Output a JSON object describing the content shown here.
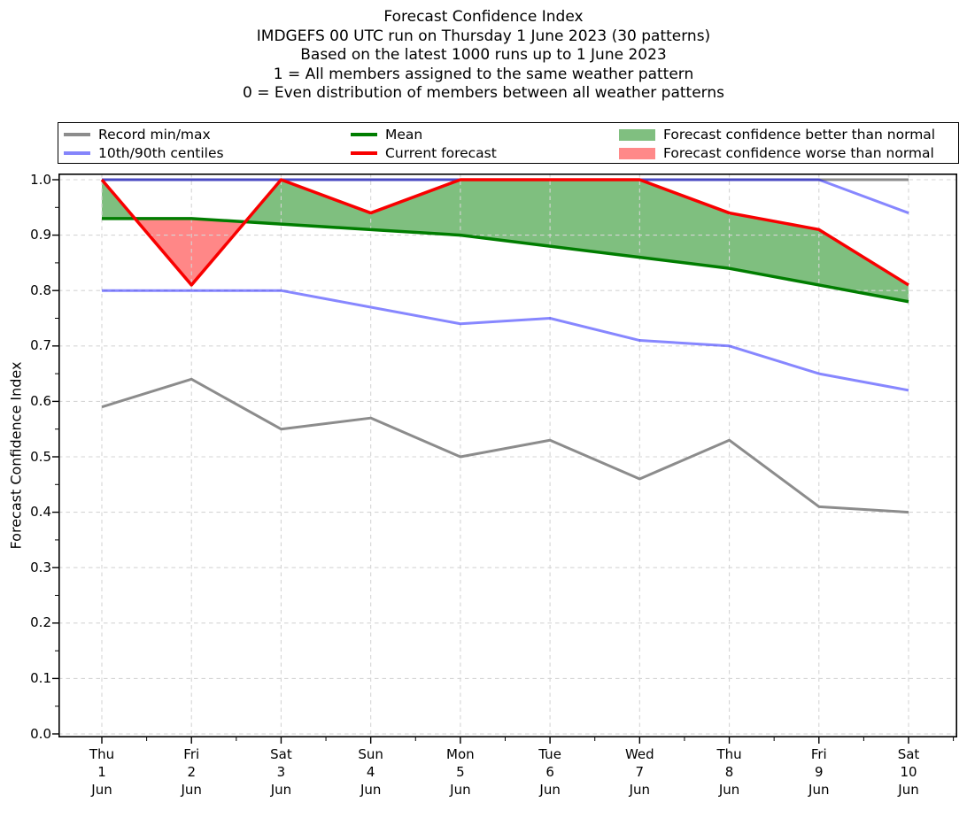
{
  "header": {
    "lines": [
      "Forecast Confidence Index",
      "IMDGEFS 00 UTC run on Thursday 1 June 2023 (30 patterns)",
      "Based on the latest 1000 runs up to 1 June 2023",
      "1 = All members assigned to the same weather pattern",
      "0 = Even distribution of members between all weather patterns"
    ]
  },
  "legend": {
    "items": [
      {
        "label": "Record min/max",
        "swatch": "line",
        "color": "#8c8c8c"
      },
      {
        "label": "10th/90th centiles",
        "swatch": "line",
        "color": "#8585fb"
      },
      {
        "label": "Mean",
        "swatch": "line",
        "color": "#007d00"
      },
      {
        "label": "Current forecast",
        "swatch": "line",
        "color": "#f80000"
      },
      {
        "label": "Forecast confidence better than normal",
        "swatch": "patch",
        "color": "#80bf80"
      },
      {
        "label": "Forecast confidence worse than normal",
        "swatch": "patch",
        "color": "#ff8989"
      }
    ]
  },
  "chart_data": {
    "type": "line",
    "title": "Forecast Confidence Index",
    "subtitle": "IMDGEFS 00 UTC run on Thursday 1 June 2023 (30 patterns); Based on the latest 1000 runs up to 1 June 2023",
    "xlabel": "",
    "ylabel": "Forecast Confidence Index",
    "ylim": [
      0.0,
      1.01
    ],
    "grid": true,
    "legend_position": "top",
    "yticks": [
      0.0,
      0.1,
      0.2,
      0.3,
      0.4,
      0.5,
      0.6,
      0.7,
      0.8,
      0.9,
      1.0
    ],
    "categories": [
      [
        "Thu",
        "1",
        "Jun"
      ],
      [
        "Fri",
        "2",
        "Jun"
      ],
      [
        "Sat",
        "3",
        "Jun"
      ],
      [
        "Sun",
        "4",
        "Jun"
      ],
      [
        "Mon",
        "5",
        "Jun"
      ],
      [
        "Tue",
        "6",
        "Jun"
      ],
      [
        "Wed",
        "7",
        "Jun"
      ],
      [
        "Thu",
        "8",
        "Jun"
      ],
      [
        "Fri",
        "9",
        "Jun"
      ],
      [
        "Sat",
        "10",
        "Jun"
      ]
    ],
    "series": [
      {
        "name": "Record max",
        "color": "#8c8c8c",
        "width": 3,
        "values": [
          1.0,
          1.0,
          1.0,
          1.0,
          1.0,
          1.0,
          1.0,
          1.0,
          1.0,
          1.0
        ]
      },
      {
        "name": "Record min",
        "color": "#8c8c8c",
        "width": 3,
        "values": [
          0.59,
          0.64,
          0.55,
          0.57,
          0.5,
          0.53,
          0.46,
          0.53,
          0.41,
          0.4
        ]
      },
      {
        "name": "90th centile",
        "color": "rgba(0,0,255,0.47)",
        "width": 3,
        "values": [
          1.0,
          1.0,
          1.0,
          1.0,
          1.0,
          1.0,
          1.0,
          1.0,
          1.0,
          0.94
        ]
      },
      {
        "name": "10th centile",
        "color": "rgba(0,0,255,0.47)",
        "width": 3,
        "values": [
          0.8,
          0.8,
          0.8,
          0.77,
          0.74,
          0.75,
          0.71,
          0.7,
          0.65,
          0.62
        ]
      },
      {
        "name": "Mean",
        "color": "#007d00",
        "width": 3.5,
        "values": [
          0.93,
          0.93,
          0.92,
          0.91,
          0.9,
          0.88,
          0.86,
          0.84,
          0.81,
          0.78
        ]
      },
      {
        "name": "Current forecast",
        "color": "#f80000",
        "width": 3.5,
        "values": [
          1.0,
          0.81,
          1.0,
          0.94,
          1.0,
          1.0,
          1.0,
          0.94,
          0.91,
          0.81
        ]
      }
    ],
    "fill_between": {
      "upper": "Current forecast",
      "lower": "Mean",
      "better_color": "rgba(0,128,0,0.5)",
      "worse_color": "rgba(255,0,0,0.47)",
      "better_label": "Forecast confidence better than normal",
      "worse_label": "Forecast confidence worse than normal"
    }
  }
}
